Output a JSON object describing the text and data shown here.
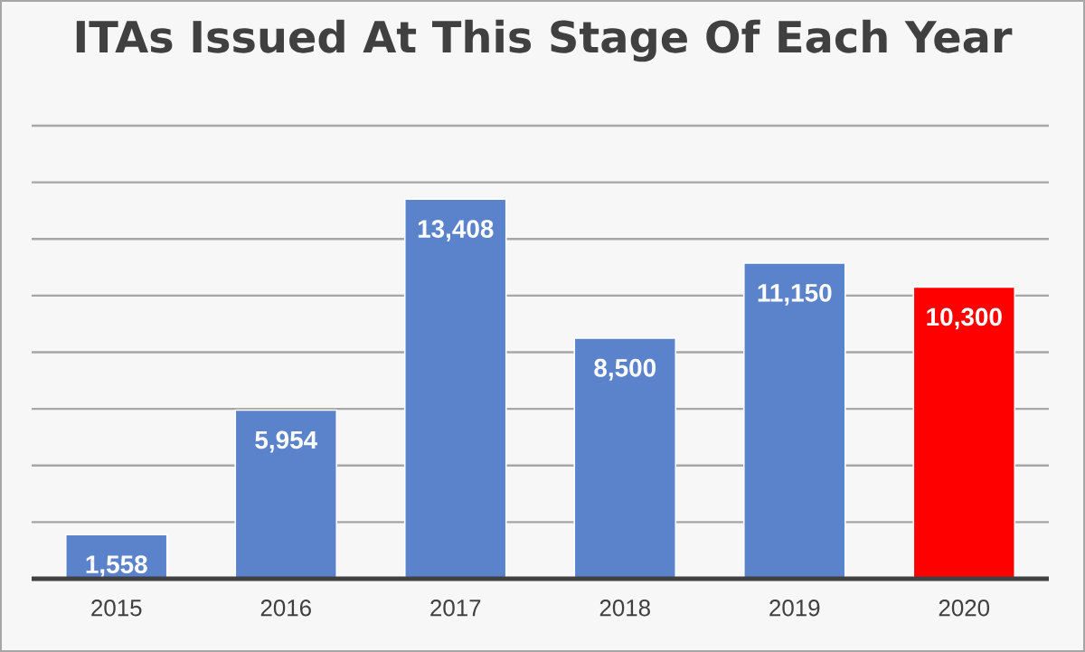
{
  "chart_data": {
    "type": "bar",
    "title": "ITAs Issued At This Stage Of Each Year",
    "categories": [
      "2015",
      "2016",
      "2017",
      "2018",
      "2019",
      "2020"
    ],
    "values": [
      1558,
      5954,
      13408,
      8500,
      11150,
      10300
    ],
    "value_labels": [
      "1,558",
      "5,954",
      "13,408",
      "8,500",
      "11,150",
      "10,300"
    ],
    "colors": [
      "#5b83cc",
      "#5b83cc",
      "#5b83cc",
      "#5b83cc",
      "#5b83cc",
      "#ff0000"
    ],
    "ylim": [
      0,
      16000
    ],
    "yticks": [
      {
        "value": 0,
        "label": null
      },
      {
        "value": 2000,
        "label": null
      },
      {
        "value": 4000,
        "label": null
      },
      {
        "value": 6000,
        "label": null
      },
      {
        "value": 8000,
        "label": null
      },
      {
        "value": 10000,
        "label": null
      },
      {
        "value": 12000,
        "label": null
      },
      {
        "value": 14000,
        "label": null
      },
      {
        "value": 16000,
        "label": null
      }
    ],
    "grid": "y",
    "tick_labels": "x"
  }
}
